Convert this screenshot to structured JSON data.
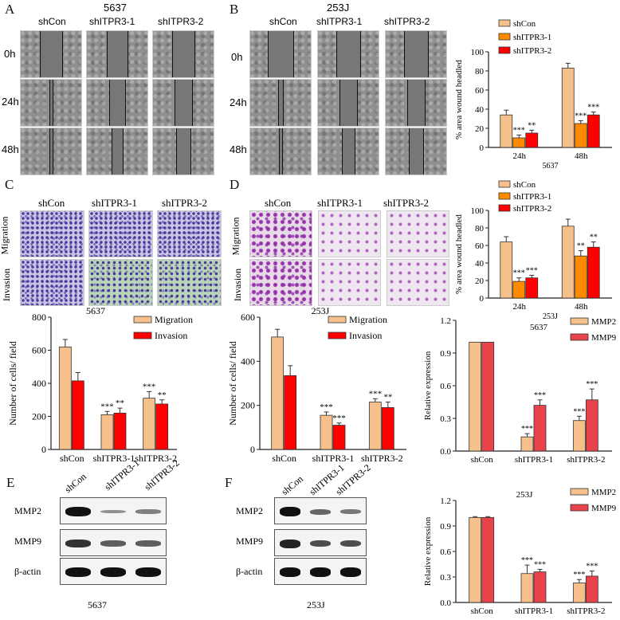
{
  "panels": {
    "A": "A",
    "B": "B",
    "C": "C",
    "D": "D",
    "E": "E",
    "F": "F"
  },
  "panelA": {
    "title": "5637",
    "cols": [
      "shCon",
      "shITPR3-1",
      "shITPR3-2"
    ],
    "rows": [
      "0h",
      "24h",
      "48h"
    ]
  },
  "panelB": {
    "title": "253J",
    "cols": [
      "shCon",
      "shITPR3-1",
      "shITPR3-2"
    ],
    "rows": [
      "0h",
      "24h",
      "48h"
    ]
  },
  "panelC": {
    "cols": [
      "shCon",
      "shITPR3-1",
      "shITPR3-2"
    ],
    "rows": [
      "Migration",
      "Invasion"
    ]
  },
  "panelD": {
    "cols": [
      "shCon",
      "shITPR3-1",
      "shITPR3-2"
    ],
    "rows": [
      "Migration",
      "Invasion"
    ]
  },
  "panelE": {
    "lanes": [
      "shCon",
      "shITPR3-1",
      "shITPR3-2"
    ],
    "rows": [
      "MMP2",
      "MMP9",
      "β-actin"
    ],
    "caption": "5637"
  },
  "panelF": {
    "lanes": [
      "shCon",
      "shITPR3-1",
      "shITPR3-2"
    ],
    "rows": [
      "MMP2",
      "MMP9",
      "β-actin"
    ],
    "caption": "253J"
  },
  "colors": {
    "shCon": "#f5c08b",
    "shITPR3-1": "#ff8a00",
    "shITPR3-2": "#ff0000",
    "Migration": "#f5c08b",
    "Invasion": "#ff0000",
    "MMP2": "#f5c08b",
    "MMP9": "#e8434a"
  },
  "chart_data": [
    {
      "id": "wound5637",
      "type": "bar",
      "categories": [
        "24h",
        "48h"
      ],
      "xcaption": "5637",
      "ylabel": "% area wound headled",
      "ylim": [
        0,
        100
      ],
      "yticks": [
        0,
        20,
        40,
        60,
        80,
        100
      ],
      "series": [
        {
          "name": "shCon",
          "values": [
            34,
            83
          ],
          "err": [
            5,
            5
          ]
        },
        {
          "name": "shITPR3-1",
          "values": [
            10,
            25
          ],
          "err": [
            3,
            3
          ]
        },
        {
          "name": "shITPR3-2",
          "values": [
            15,
            34
          ],
          "err": [
            3,
            3
          ]
        }
      ],
      "sig": [
        [
          "",
          "***",
          "**"
        ],
        [
          "",
          "***",
          "***"
        ]
      ],
      "legend": "top-right"
    },
    {
      "id": "wound253J",
      "type": "bar",
      "categories": [
        "24h",
        "48h"
      ],
      "xcaption": "253J",
      "ylabel": "% area wound headled",
      "ylim": [
        0,
        100
      ],
      "yticks": [
        0,
        20,
        40,
        60,
        80,
        100
      ],
      "series": [
        {
          "name": "shCon",
          "values": [
            64,
            82
          ],
          "err": [
            6,
            8
          ]
        },
        {
          "name": "shITPR3-1",
          "values": [
            19,
            48
          ],
          "err": [
            4,
            6
          ]
        },
        {
          "name": "shITPR3-2",
          "values": [
            23,
            58
          ],
          "err": [
            3,
            6
          ]
        }
      ],
      "sig": [
        [
          "",
          "***",
          "***"
        ],
        [
          "",
          "**",
          "**"
        ]
      ],
      "legend": "top-right"
    },
    {
      "id": "trans5637",
      "type": "bar",
      "title": "5637",
      "categories": [
        "shCon",
        "shITPR3-1",
        "shITPR3-2"
      ],
      "ylabel": "Number of cells/ field",
      "ylim": [
        0,
        800
      ],
      "yticks": [
        0,
        200,
        400,
        600,
        800
      ],
      "series": [
        {
          "name": "Migration",
          "values": [
            620,
            210,
            310
          ],
          "err": [
            45,
            20,
            40
          ]
        },
        {
          "name": "Invasion",
          "values": [
            415,
            220,
            275
          ],
          "err": [
            50,
            30,
            25
          ]
        }
      ],
      "sig": [
        [
          "",
          ""
        ],
        [
          "***",
          "**"
        ],
        [
          "***",
          "**"
        ]
      ],
      "legend": "top-right"
    },
    {
      "id": "trans253J",
      "type": "bar",
      "title": "253J",
      "categories": [
        "shCon",
        "shITPR3-1",
        "shITPR3-2"
      ],
      "ylabel": "Number of cells/ field",
      "ylim": [
        0,
        600
      ],
      "yticks": [
        0,
        200,
        400,
        600
      ],
      "series": [
        {
          "name": "Migration",
          "values": [
            510,
            155,
            215
          ],
          "err": [
            35,
            15,
            15
          ]
        },
        {
          "name": "Invasion",
          "values": [
            335,
            110,
            190
          ],
          "err": [
            45,
            10,
            25
          ]
        }
      ],
      "sig": [
        [
          "",
          ""
        ],
        [
          "***",
          "***"
        ],
        [
          "***",
          "**"
        ]
      ],
      "legend": "top-right"
    },
    {
      "id": "wb5637",
      "type": "bar",
      "title": "5637",
      "categories": [
        "shCon",
        "shITPR3-1",
        "shITPR3-2"
      ],
      "ylabel": "Relative expression",
      "ylim": [
        0,
        1.2
      ],
      "yticks": [
        "0.0",
        "0.3",
        "0.6",
        "0.9",
        "1.2"
      ],
      "series": [
        {
          "name": "MMP2",
          "values": [
            1.0,
            0.13,
            0.28
          ],
          "err": [
            0.0,
            0.03,
            0.04
          ]
        },
        {
          "name": "MMP9",
          "values": [
            1.0,
            0.42,
            0.47
          ],
          "err": [
            0.0,
            0.05,
            0.1
          ]
        }
      ],
      "sig": [
        [
          "",
          ""
        ],
        [
          "***",
          "***"
        ],
        [
          "***",
          "***"
        ]
      ],
      "legend": "top-right"
    },
    {
      "id": "wb253J",
      "type": "bar",
      "title": "253J",
      "categories": [
        "shCon",
        "shITPR3-1",
        "shITPR3-2"
      ],
      "ylabel": "Relative expression",
      "ylim": [
        0,
        1.2
      ],
      "yticks": [
        "0.0",
        "0.3",
        "0.6",
        "0.9",
        "1.2"
      ],
      "series": [
        {
          "name": "MMP2",
          "values": [
            1.0,
            0.34,
            0.23
          ],
          "err": [
            0.01,
            0.1,
            0.04
          ]
        },
        {
          "name": "MMP9",
          "values": [
            1.0,
            0.36,
            0.31
          ],
          "err": [
            0.01,
            0.03,
            0.06
          ]
        }
      ],
      "sig": [
        [
          "",
          ""
        ],
        [
          "***",
          "***"
        ],
        [
          "***",
          "***"
        ]
      ],
      "legend": "top-right"
    }
  ]
}
